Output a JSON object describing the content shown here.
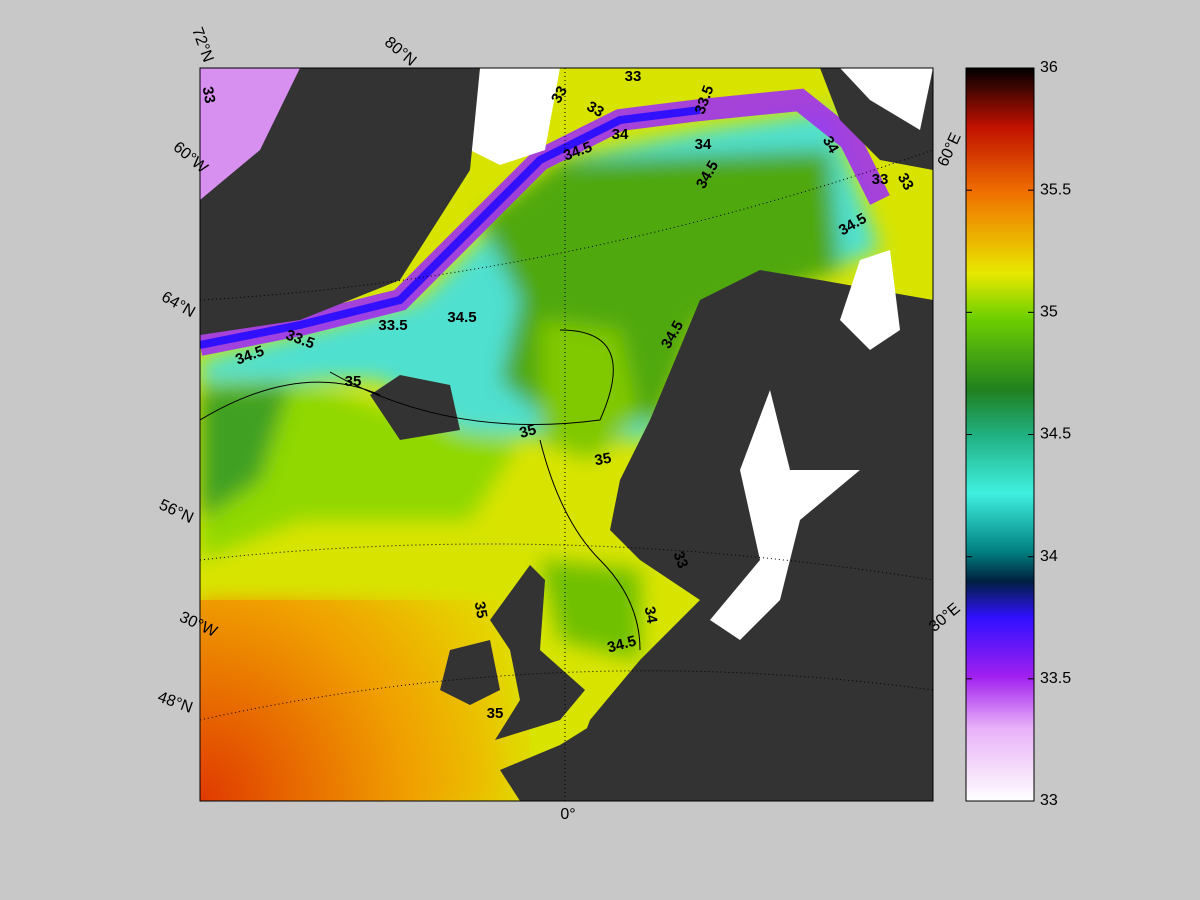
{
  "colorbar": {
    "lim": [
      33,
      36
    ],
    "ticks": [
      33,
      33.5,
      34,
      34.5,
      35,
      35.5,
      36
    ]
  },
  "graticule_labels": [
    "72°N",
    "80°N",
    "60°W",
    "64°N",
    "56°N",
    "30°W",
    "48°N",
    "0°",
    "30°E",
    "60°E"
  ],
  "contour_labels": [
    33,
    33,
    33,
    33,
    33.5,
    34,
    34.5,
    34,
    34.5,
    34,
    33,
    33,
    34.5,
    34.5,
    33.5,
    33.5,
    34.5,
    35,
    35,
    35,
    34.5,
    33,
    34,
    34.5,
    35,
    35
  ]
}
